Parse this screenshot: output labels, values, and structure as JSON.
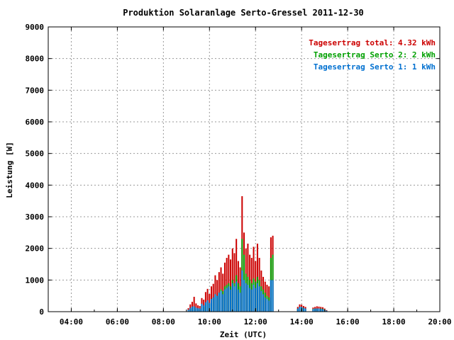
{
  "chart_data": {
    "type": "bar",
    "title": "Produktion Solaranlage Serto-Gressel 2011-12-30",
    "xlabel": "Zeit (UTC)",
    "ylabel": "Leistung [W]",
    "ylim": [
      0,
      9000
    ],
    "xlim": [
      "03:00",
      "20:00"
    ],
    "y_ticks": [
      "0",
      "1000",
      "2000",
      "3000",
      "4000",
      "5000",
      "6000",
      "7000",
      "8000",
      "9000"
    ],
    "x_ticks": [
      "04:00",
      "06:00",
      "08:00",
      "10:00",
      "12:00",
      "14:00",
      "16:00",
      "18:00",
      "20:00"
    ],
    "grid": true,
    "legend_position": "top-right",
    "legend": [
      {
        "label": "Tagesertrag total:",
        "value": "4.32 kWh",
        "color": "#cc0000"
      },
      {
        "label": "Tagesertrag Serto 2:",
        "value": "2 kWh",
        "color": "#00a000"
      },
      {
        "label": "Tagesertrag Serto 1:",
        "value": "1 kWh",
        "color": "#0070d0"
      }
    ],
    "colors": {
      "total": "#cc0000",
      "serto2": "#00a000",
      "serto1": "#0070d0",
      "grid": "#999999"
    },
    "series_keys": [
      "serto1",
      "serto2",
      "total"
    ],
    "points": [
      {
        "t": "09:05",
        "s1": 60,
        "s2": 40,
        "tot": 110
      },
      {
        "t": "09:10",
        "s1": 120,
        "s2": 80,
        "tot": 230
      },
      {
        "t": "09:15",
        "s1": 160,
        "s2": 120,
        "tot": 310
      },
      {
        "t": "09:20",
        "s1": 170,
        "s2": 160,
        "tot": 470
      },
      {
        "t": "09:25",
        "s1": 130,
        "s2": 90,
        "tot": 260
      },
      {
        "t": "09:30",
        "s1": 110,
        "s2": 70,
        "tot": 200
      },
      {
        "t": "09:35",
        "s1": 100,
        "s2": 80,
        "tot": 180
      },
      {
        "t": "09:40",
        "s1": 250,
        "s2": 180,
        "tot": 430
      },
      {
        "t": "09:45",
        "s1": 200,
        "s2": 150,
        "tot": 380
      },
      {
        "t": "09:50",
        "s1": 300,
        "s2": 250,
        "tot": 620
      },
      {
        "t": "09:55",
        "s1": 360,
        "s2": 300,
        "tot": 720
      },
      {
        "t": "10:00",
        "s1": 280,
        "s2": 250,
        "tot": 560
      },
      {
        "t": "10:05",
        "s1": 400,
        "s2": 400,
        "tot": 800
      },
      {
        "t": "10:10",
        "s1": 450,
        "s2": 450,
        "tot": 880
      },
      {
        "t": "10:15",
        "s1": 550,
        "s2": 550,
        "tot": 1150
      },
      {
        "t": "10:20",
        "s1": 500,
        "s2": 500,
        "tot": 1000
      },
      {
        "t": "10:25",
        "s1": 600,
        "s2": 600,
        "tot": 1250
      },
      {
        "t": "10:30",
        "s1": 650,
        "s2": 700,
        "tot": 1400
      },
      {
        "t": "10:35",
        "s1": 550,
        "s2": 650,
        "tot": 1200
      },
      {
        "t": "10:40",
        "s1": 700,
        "s2": 800,
        "tot": 1550
      },
      {
        "t": "10:45",
        "s1": 750,
        "s2": 850,
        "tot": 1700
      },
      {
        "t": "10:50",
        "s1": 800,
        "s2": 900,
        "tot": 1800
      },
      {
        "t": "10:55",
        "s1": 700,
        "s2": 800,
        "tot": 1650
      },
      {
        "t": "11:00",
        "s1": 900,
        "s2": 1000,
        "tot": 2000
      },
      {
        "t": "11:05",
        "s1": 800,
        "s2": 900,
        "tot": 1850
      },
      {
        "t": "11:10",
        "s1": 950,
        "s2": 1150,
        "tot": 2300
      },
      {
        "t": "11:15",
        "s1": 700,
        "s2": 900,
        "tot": 1600
      },
      {
        "t": "11:20",
        "s1": 600,
        "s2": 800,
        "tot": 1400
      },
      {
        "t": "11:25",
        "s1": 1300,
        "s2": 2300,
        "tot": 3650
      },
      {
        "t": "11:30",
        "s1": 1000,
        "s2": 1800,
        "tot": 2500
      },
      {
        "t": "11:35",
        "s1": 900,
        "s2": 1200,
        "tot": 2000
      },
      {
        "t": "11:40",
        "s1": 850,
        "s2": 1100,
        "tot": 2150
      },
      {
        "t": "11:45",
        "s1": 750,
        "s2": 1000,
        "tot": 1800
      },
      {
        "t": "11:50",
        "s1": 700,
        "s2": 900,
        "tot": 1700
      },
      {
        "t": "11:55",
        "s1": 850,
        "s2": 1050,
        "tot": 2050
      },
      {
        "t": "12:00",
        "s1": 750,
        "s2": 950,
        "tot": 1600
      },
      {
        "t": "12:05",
        "s1": 900,
        "s2": 1100,
        "tot": 2150
      },
      {
        "t": "12:10",
        "s1": 800,
        "s2": 1000,
        "tot": 1700
      },
      {
        "t": "12:15",
        "s1": 650,
        "s2": 800,
        "tot": 1300
      },
      {
        "t": "12:20",
        "s1": 550,
        "s2": 700,
        "tot": 1100
      },
      {
        "t": "12:25",
        "s1": 450,
        "s2": 600,
        "tot": 950
      },
      {
        "t": "12:30",
        "s1": 400,
        "s2": 500,
        "tot": 850
      },
      {
        "t": "12:35",
        "s1": 350,
        "s2": 450,
        "tot": 800
      },
      {
        "t": "12:40",
        "s1": 1000,
        "s2": 1700,
        "tot": 2350
      },
      {
        "t": "12:45",
        "s1": 1000,
        "s2": 1800,
        "tot": 2400
      },
      {
        "t": "13:50",
        "s1": 100,
        "s2": 100,
        "tot": 150
      },
      {
        "t": "13:55",
        "s1": 150,
        "s2": 150,
        "tot": 230
      },
      {
        "t": "14:00",
        "s1": 150,
        "s2": 150,
        "tot": 220
      },
      {
        "t": "14:05",
        "s1": 120,
        "s2": 120,
        "tot": 180
      },
      {
        "t": "14:10",
        "s1": 100,
        "s2": 100,
        "tot": 150
      },
      {
        "t": "14:30",
        "s1": 80,
        "s2": 90,
        "tot": 130
      },
      {
        "t": "14:35",
        "s1": 100,
        "s2": 100,
        "tot": 150
      },
      {
        "t": "14:40",
        "s1": 100,
        "s2": 100,
        "tot": 170
      },
      {
        "t": "14:45",
        "s1": 100,
        "s2": 100,
        "tot": 160
      },
      {
        "t": "14:50",
        "s1": 90,
        "s2": 100,
        "tot": 150
      },
      {
        "t": "14:55",
        "s1": 80,
        "s2": 90,
        "tot": 140
      },
      {
        "t": "15:00",
        "s1": 60,
        "s2": 70,
        "tot": 100
      },
      {
        "t": "15:05",
        "s1": 30,
        "s2": 30,
        "tot": 50
      }
    ]
  }
}
